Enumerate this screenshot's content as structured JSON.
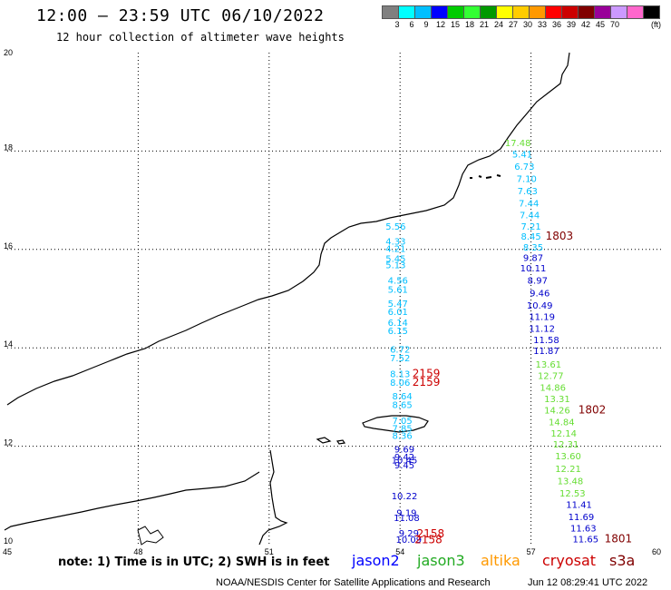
{
  "header": {
    "title": "12:00 – 23:59 UTC 06/10/2022",
    "subtitle": "12 hour collection of altimeter wave heights"
  },
  "colorbar": {
    "colors": [
      "#808080",
      "#00ffff",
      "#00bfff",
      "#0000ff",
      "#00cc00",
      "#33ff33",
      "#009900",
      "#ffff00",
      "#ffcc00",
      "#ff9900",
      "#ff0000",
      "#cc0000",
      "#800000",
      "#990099",
      "#cc99ff",
      "#ff66cc",
      "#000000"
    ],
    "labels": [
      "3",
      "6",
      "9",
      "12",
      "15",
      "18",
      "21",
      "24",
      "27",
      "30",
      "33",
      "36",
      "39",
      "42",
      "45",
      "70"
    ],
    "unit": "(ft)"
  },
  "axes": {
    "x_ticks": [
      "45",
      "48",
      "51",
      "54",
      "57",
      "60"
    ],
    "y_ticks": [
      "20",
      "18",
      "16",
      "14",
      "12",
      "10"
    ]
  },
  "tracks": {
    "colors": {
      "jason2": "#0000ff",
      "jason3": "#33cc33",
      "altika": "#ff9900",
      "cryosat": "#cc0000",
      "s3a": "#800000",
      "cyan": "#00bfff",
      "dark_blue": "#0000cc",
      "light_green": "#66dd33"
    },
    "track1": [
      {
        "text": "5.56",
        "lon": 53.9,
        "lat": 16.4,
        "c": "cyan"
      },
      {
        "text": "4.33",
        "lon": 53.9,
        "lat": 16.1,
        "c": "cyan"
      },
      {
        "text": "4.21",
        "lon": 53.9,
        "lat": 15.95,
        "c": "cyan"
      },
      {
        "text": "5.45",
        "lon": 53.9,
        "lat": 15.75,
        "c": "cyan"
      },
      {
        "text": "5.13",
        "lon": 53.9,
        "lat": 15.62,
        "c": "cyan"
      },
      {
        "text": "4.56",
        "lon": 53.95,
        "lat": 15.3,
        "c": "cyan"
      },
      {
        "text": "5.61",
        "lon": 53.95,
        "lat": 15.12,
        "c": "cyan"
      },
      {
        "text": "5.47",
        "lon": 53.95,
        "lat": 14.83,
        "c": "cyan"
      },
      {
        "text": "6.01",
        "lon": 53.95,
        "lat": 14.67,
        "c": "cyan"
      },
      {
        "text": "6.14",
        "lon": 53.95,
        "lat": 14.45,
        "c": "cyan"
      },
      {
        "text": "6.15",
        "lon": 53.95,
        "lat": 14.28,
        "c": "cyan"
      },
      {
        "text": "6.72",
        "lon": 54.0,
        "lat": 13.9,
        "c": "cyan"
      },
      {
        "text": "7.52",
        "lon": 54.0,
        "lat": 13.73,
        "c": "cyan"
      },
      {
        "text": "8.13",
        "lon": 54.0,
        "lat": 13.4,
        "c": "cyan"
      },
      {
        "text": "8.06",
        "lon": 54.0,
        "lat": 13.23,
        "c": "cyan"
      },
      {
        "text": "8.64",
        "lon": 54.05,
        "lat": 12.95,
        "c": "cyan"
      },
      {
        "text": "8.65",
        "lon": 54.05,
        "lat": 12.78,
        "c": "cyan"
      },
      {
        "text": "7.05",
        "lon": 54.05,
        "lat": 12.45,
        "c": "cyan"
      },
      {
        "text": "7.85",
        "lon": 54.05,
        "lat": 12.3,
        "c": "cyan"
      },
      {
        "text": "8.36",
        "lon": 54.05,
        "lat": 12.15,
        "c": "cyan"
      },
      {
        "text": "9.69",
        "lon": 54.1,
        "lat": 11.87,
        "c": "dark_blue"
      },
      {
        "text": "9.42",
        "lon": 54.1,
        "lat": 11.72,
        "c": "dark_blue"
      },
      {
        "text": "10.45",
        "lon": 54.1,
        "lat": 11.65,
        "c": "dark_blue"
      },
      {
        "text": "9.45",
        "lon": 54.1,
        "lat": 11.55,
        "c": "dark_blue"
      },
      {
        "text": "10.22",
        "lon": 54.1,
        "lat": 10.92,
        "c": "dark_blue"
      },
      {
        "text": "9.19",
        "lon": 54.15,
        "lat": 10.58,
        "c": "dark_blue"
      },
      {
        "text": "11.08",
        "lon": 54.15,
        "lat": 10.48,
        "c": "dark_blue"
      },
      {
        "text": "9.29",
        "lon": 54.2,
        "lat": 10.17,
        "c": "dark_blue"
      },
      {
        "text": "10.09",
        "lon": 54.2,
        "lat": 10.04,
        "c": "dark_blue"
      }
    ],
    "track2": [
      {
        "text": "17.48",
        "lon": 56.7,
        "lat": 18.1,
        "c": "light_green"
      },
      {
        "text": "5.41",
        "lon": 56.8,
        "lat": 17.87,
        "c": "cyan"
      },
      {
        "text": "6.73",
        "lon": 56.85,
        "lat": 17.62,
        "c": "cyan"
      },
      {
        "text": "7.10",
        "lon": 56.9,
        "lat": 17.37,
        "c": "cyan"
      },
      {
        "text": "7.63",
        "lon": 56.92,
        "lat": 17.12,
        "c": "cyan"
      },
      {
        "text": "7.44",
        "lon": 56.95,
        "lat": 16.87,
        "c": "cyan"
      },
      {
        "text": "7.44",
        "lon": 56.97,
        "lat": 16.63,
        "c": "cyan"
      },
      {
        "text": "7.21",
        "lon": 57.0,
        "lat": 16.4,
        "c": "cyan"
      },
      {
        "text": "8.45",
        "lon": 57.0,
        "lat": 16.2,
        "c": "cyan"
      },
      {
        "text": "8.35",
        "lon": 57.05,
        "lat": 15.98,
        "c": "cyan"
      },
      {
        "text": "9.87",
        "lon": 57.05,
        "lat": 15.77,
        "c": "dark_blue"
      },
      {
        "text": "10.11",
        "lon": 57.05,
        "lat": 15.55,
        "c": "dark_blue"
      },
      {
        "text": "8.97",
        "lon": 57.15,
        "lat": 15.3,
        "c": "dark_blue"
      },
      {
        "text": "9.46",
        "lon": 57.2,
        "lat": 15.05,
        "c": "dark_blue"
      },
      {
        "text": "10.49",
        "lon": 57.2,
        "lat": 14.8,
        "c": "dark_blue"
      },
      {
        "text": "11.19",
        "lon": 57.25,
        "lat": 14.57,
        "c": "dark_blue"
      },
      {
        "text": "11.12",
        "lon": 57.25,
        "lat": 14.33,
        "c": "dark_blue"
      },
      {
        "text": "11.58",
        "lon": 57.35,
        "lat": 14.1,
        "c": "dark_blue"
      },
      {
        "text": "11.87",
        "lon": 57.35,
        "lat": 13.87,
        "c": "dark_blue"
      },
      {
        "text": "13.61",
        "lon": 57.4,
        "lat": 13.6,
        "c": "light_green"
      },
      {
        "text": "12.77",
        "lon": 57.45,
        "lat": 13.37,
        "c": "light_green"
      },
      {
        "text": "14.86",
        "lon": 57.5,
        "lat": 13.13,
        "c": "light_green"
      },
      {
        "text": "13.31",
        "lon": 57.6,
        "lat": 12.9,
        "c": "light_green"
      },
      {
        "text": "14.26",
        "lon": 57.6,
        "lat": 12.67,
        "c": "light_green"
      },
      {
        "text": "14.84",
        "lon": 57.7,
        "lat": 12.43,
        "c": "light_green"
      },
      {
        "text": "12.14",
        "lon": 57.75,
        "lat": 12.2,
        "c": "light_green"
      },
      {
        "text": "12.31",
        "lon": 57.8,
        "lat": 11.97,
        "c": "light_green"
      },
      {
        "text": "13.60",
        "lon": 57.85,
        "lat": 11.73,
        "c": "light_green"
      },
      {
        "text": "12.21",
        "lon": 57.85,
        "lat": 11.48,
        "c": "light_green"
      },
      {
        "text": "13.48",
        "lon": 57.9,
        "lat": 11.23,
        "c": "light_green"
      },
      {
        "text": "12.53",
        "lon": 57.95,
        "lat": 10.98,
        "c": "light_green"
      },
      {
        "text": "11.41",
        "lon": 58.1,
        "lat": 10.75,
        "c": "dark_blue"
      },
      {
        "text": "11.69",
        "lon": 58.15,
        "lat": 10.5,
        "c": "dark_blue"
      },
      {
        "text": "11.63",
        "lon": 58.2,
        "lat": 10.27,
        "c": "dark_blue"
      },
      {
        "text": "11.65",
        "lon": 58.25,
        "lat": 10.05,
        "c": "dark_blue"
      }
    ],
    "time_labels": [
      {
        "text": "1803",
        "lon": 57.65,
        "lat": 16.2,
        "c": "s3a"
      },
      {
        "text": "2159",
        "lon": 54.6,
        "lat": 13.4,
        "c": "cryosat"
      },
      {
        "text": "2159",
        "lon": 54.6,
        "lat": 13.23,
        "c": "cryosat"
      },
      {
        "text": "1802",
        "lon": 58.4,
        "lat": 12.67,
        "c": "s3a"
      },
      {
        "text": "2158",
        "lon": 54.7,
        "lat": 10.15,
        "c": "cryosat"
      },
      {
        "text": "2158",
        "lon": 54.65,
        "lat": 10.03,
        "c": "cryosat"
      },
      {
        "text": "1801",
        "lon": 59.0,
        "lat": 10.05,
        "c": "s3a"
      }
    ]
  },
  "legend": {
    "note": "note: 1) Time is in UTC; 2) SWH is in feet",
    "satellites": [
      {
        "name": "jason2",
        "color": "#0000ff"
      },
      {
        "name": "jason3",
        "color": "#22aa22"
      },
      {
        "name": "altika",
        "color": "#ff9900"
      },
      {
        "name": "cryosat",
        "color": "#cc0000"
      },
      {
        "name": "s3a",
        "color": "#800000"
      }
    ]
  },
  "footer": {
    "credit": "NOAA/NESDIS Center for Satellite Applications and Research",
    "timestamp": "Jun 12 08:29:41 UTC 2022"
  }
}
